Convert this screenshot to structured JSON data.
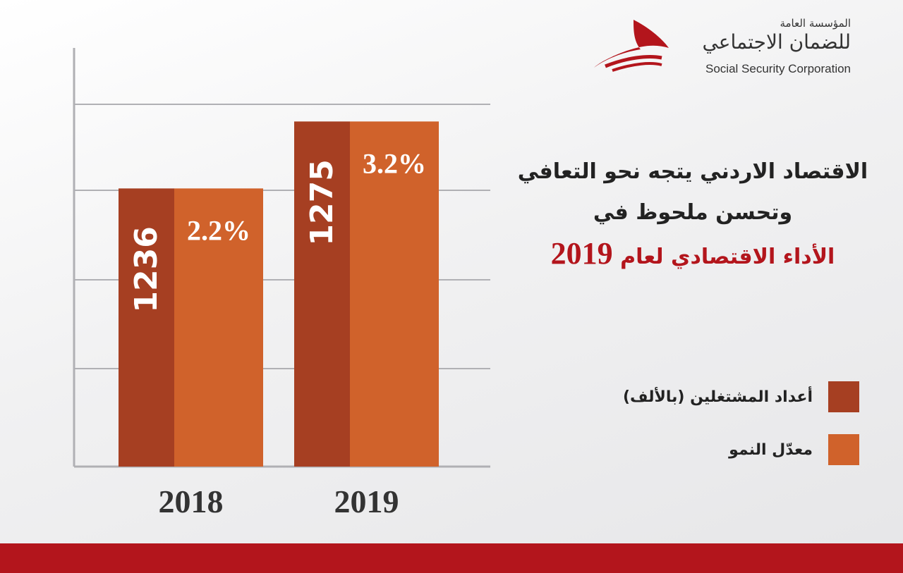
{
  "logo": {
    "arabic_line1": "المؤسسة العامة",
    "arabic_line2": "للضمان الاجتماعي",
    "english": "Social Security Corporation",
    "color": "#b3151c"
  },
  "title": {
    "line1": "الاقتصاد الاردني يتجه نحو التعافي",
    "line2": "وتحسن ملحوظ في",
    "line3": "الأداء الاقتصادي لعام",
    "year": "2019"
  },
  "chart_data": {
    "type": "bar",
    "categories": [
      "2018",
      "2019"
    ],
    "series": [
      {
        "name": "أعداد المشتغلين (بالألف)",
        "values": [
          1236,
          1275
        ],
        "labels": [
          "1236",
          "1275"
        ],
        "color": "#a63f22"
      },
      {
        "name": "معدّل النمو",
        "values": [
          2.2,
          3.2
        ],
        "labels": [
          "2.2%",
          "3.2%"
        ],
        "color": "#d0622b"
      }
    ],
    "grid": true,
    "legend": "right"
  }
}
